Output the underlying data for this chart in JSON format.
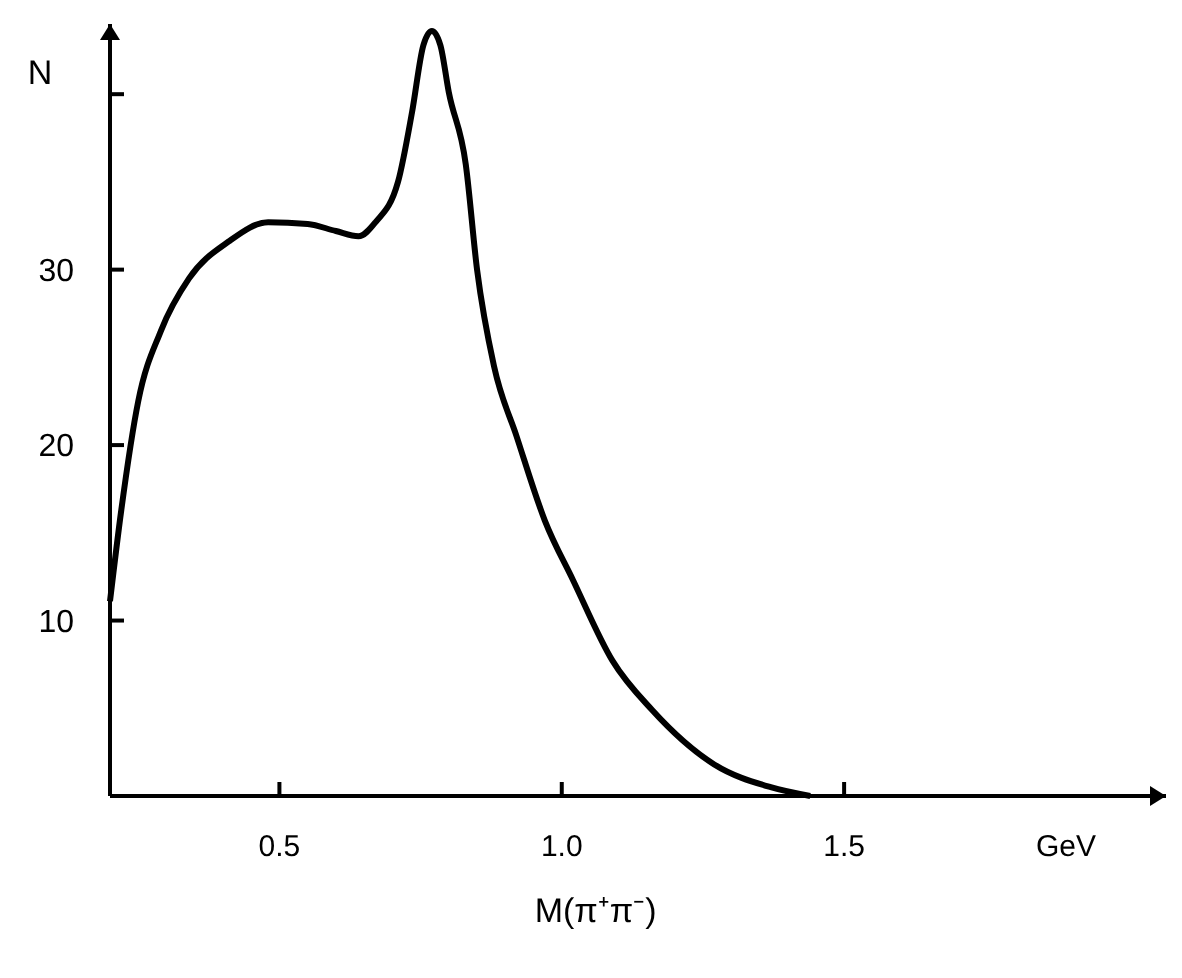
{
  "chart_data": {
    "type": "line",
    "xlabel": "M(π⁺π⁻)",
    "ylabel": "N",
    "annotations": [
      "GeV"
    ],
    "xlim": [
      0.2,
      2.07
    ],
    "ylim": [
      0,
      44
    ],
    "xticks": [
      0.5,
      {
        "value": 1,
        "label": "1.0"
      },
      1.5
    ],
    "yticks": [
      10,
      20,
      30,
      {
        "value": 40,
        "label": null
      }
    ],
    "grid": false,
    "marker": "none",
    "line_style": "solid",
    "series": [
      {
        "color": "#000000",
        "x": [
          0.2,
          0.22,
          0.25,
          0.29,
          0.34,
          0.41,
          0.48,
          0.55,
          0.6,
          0.64,
          0.67,
          0.71,
          0.735,
          0.755,
          0.77,
          0.785,
          0.8,
          0.83,
          0.85,
          0.88,
          0.92,
          0.97,
          1.02,
          1.09,
          1.16,
          1.27,
          1.37,
          1.44
        ],
        "values": [
          11.1,
          16.3,
          22.5,
          26.5,
          29.5,
          31.6,
          32.7,
          32.6,
          32.2,
          31.9,
          32.7,
          35,
          39,
          42.8,
          43.6,
          42.8,
          40.1,
          36,
          30,
          24.5,
          20.5,
          15.7,
          12.3,
          7.7,
          4.9,
          1.8,
          0.5,
          0
        ]
      }
    ]
  }
}
